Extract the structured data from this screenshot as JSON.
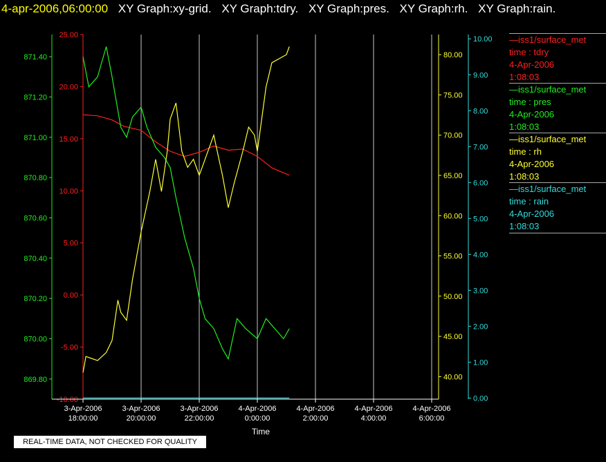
{
  "header": {
    "timestamp": "4-apr-2006,06:00:00",
    "graphs": [
      "XY Graph:xy-grid.",
      "XY Graph:tdry.",
      "XY Graph:pres.",
      "XY Graph:rh.",
      "XY Graph:rain."
    ]
  },
  "footer_note": "REAL-TIME DATA, NOT CHECKED FOR QUALITY",
  "legend": [
    {
      "source": "iss1/surface_met",
      "field": "time : tdry",
      "date": "4-Apr-2006",
      "time": "1:08:03",
      "color": "#ff2020"
    },
    {
      "source": "iss1/surface_met",
      "field": "time : pres",
      "date": "4-Apr-2006",
      "time": "1:08:03",
      "color": "#22ee22"
    },
    {
      "source": "iss1/surface_met",
      "field": "time : rh",
      "date": "4-Apr-2006",
      "time": "1:08:03",
      "color": "#ffff33"
    },
    {
      "source": "iss1/surface_met",
      "field": "time : rain",
      "date": "4-Apr-2006",
      "time": "1:08:03",
      "color": "#33dddd"
    }
  ],
  "chart_data": {
    "type": "line",
    "xlabel": "Time",
    "x_range": [
      "3-Apr-2006 18:00",
      "4-Apr-2006 06:00"
    ],
    "x_ticks": [
      {
        "t": 0,
        "label": [
          "3-Apr-2006",
          "18:00:00"
        ]
      },
      {
        "t": 2,
        "label": [
          "3-Apr-2006",
          "20:00:00"
        ]
      },
      {
        "t": 4,
        "label": [
          "3-Apr-2006",
          "22:00:00"
        ]
      },
      {
        "t": 6,
        "label": [
          "4-Apr-2006",
          "0:00:00"
        ]
      },
      {
        "t": 8,
        "label": [
          "4-Apr-2006",
          "2:00:00"
        ]
      },
      {
        "t": 10,
        "label": [
          "4-Apr-2006",
          "4:00:00"
        ]
      },
      {
        "t": 12,
        "label": [
          "4-Apr-2006",
          "6:00:00"
        ]
      }
    ],
    "grid": true,
    "axes": [
      {
        "id": "tdry",
        "color": "#ff2020",
        "side": "left",
        "min": -10,
        "max": 25,
        "ticks": [
          "25.00",
          "20.00",
          "15.00",
          "10.00",
          "5.00",
          "0.00",
          "-5.00",
          "-10.00"
        ]
      },
      {
        "id": "pres",
        "color": "#22ee22",
        "side": "left",
        "min": 869.7,
        "max": 871.51,
        "ticks": [
          "871.40",
          "871.20",
          "871.00",
          "870.80",
          "870.60",
          "870.40",
          "870.20",
          "870.00",
          "869.80"
        ]
      },
      {
        "id": "rh",
        "color": "#ffff33",
        "side": "right",
        "min": 37.2,
        "max": 82.5,
        "ticks": [
          "80.00",
          "75.00",
          "70.00",
          "65.00",
          "60.00",
          "55.00",
          "50.00",
          "45.00",
          "40.00"
        ]
      },
      {
        "id": "rain",
        "color": "#33dddd",
        "side": "right",
        "min": -0.03,
        "max": 10.12,
        "ticks": [
          "10.00",
          "9.00",
          "8.00",
          "7.00",
          "6.00",
          "5.00",
          "4.00",
          "3.00",
          "2.00",
          "1.00",
          "0.00"
        ]
      }
    ],
    "series": [
      {
        "axis": "tdry",
        "color": "#ff2020",
        "x": [
          0,
          0.5,
          1,
          1.4,
          2,
          2.5,
          3,
          3.5,
          4,
          4.5,
          5,
          5.5,
          6,
          6.5,
          7.1
        ],
        "y": [
          17.3,
          17.2,
          16.8,
          16.2,
          15.8,
          14.7,
          13.8,
          13.3,
          13.7,
          14.3,
          13.9,
          14.0,
          13.3,
          12.2,
          11.5
        ]
      },
      {
        "axis": "pres",
        "color": "#22ee22",
        "x": [
          0,
          0.2,
          0.5,
          0.8,
          1.0,
          1.3,
          1.5,
          1.7,
          2.0,
          2.2,
          2.5,
          2.8,
          3.0,
          3.2,
          3.5,
          3.8,
          4.0,
          4.2,
          4.5,
          4.8,
          5.0,
          5.3,
          5.6,
          6.0,
          6.3,
          6.6,
          6.9,
          7.1
        ],
        "y": [
          871.4,
          871.25,
          871.3,
          871.45,
          871.3,
          871.05,
          871.0,
          871.1,
          871.15,
          871.05,
          870.95,
          870.9,
          870.85,
          870.7,
          870.5,
          870.35,
          870.2,
          870.1,
          870.05,
          869.95,
          869.9,
          870.1,
          870.05,
          870.0,
          870.1,
          870.05,
          870.0,
          870.05
        ]
      },
      {
        "axis": "rh",
        "color": "#ffff33",
        "x": [
          0,
          0.1,
          0.5,
          0.8,
          1.0,
          1.2,
          1.3,
          1.5,
          1.7,
          2.0,
          2.3,
          2.5,
          2.7,
          2.9,
          3.0,
          3.2,
          3.4,
          3.6,
          3.8,
          4.0,
          4.2,
          4.5,
          4.8,
          5.0,
          5.2,
          5.5,
          5.7,
          5.9,
          6.0,
          6.3,
          6.5,
          7.0,
          7.1
        ],
        "y": [
          40.5,
          42.5,
          42.0,
          43.0,
          44.5,
          49.5,
          48.0,
          47.0,
          52.0,
          58.0,
          63.0,
          67.0,
          63.0,
          68.0,
          72.0,
          74.0,
          68.0,
          66.0,
          67.0,
          65.0,
          67.0,
          70.0,
          65.0,
          61.0,
          64.0,
          68.0,
          71.0,
          70.0,
          68.0,
          76.0,
          79.0,
          80.0,
          81.0
        ]
      },
      {
        "axis": "rain",
        "color": "#33dddd",
        "x": [
          0,
          7.1
        ],
        "y": [
          0.0,
          0.0
        ]
      }
    ]
  }
}
